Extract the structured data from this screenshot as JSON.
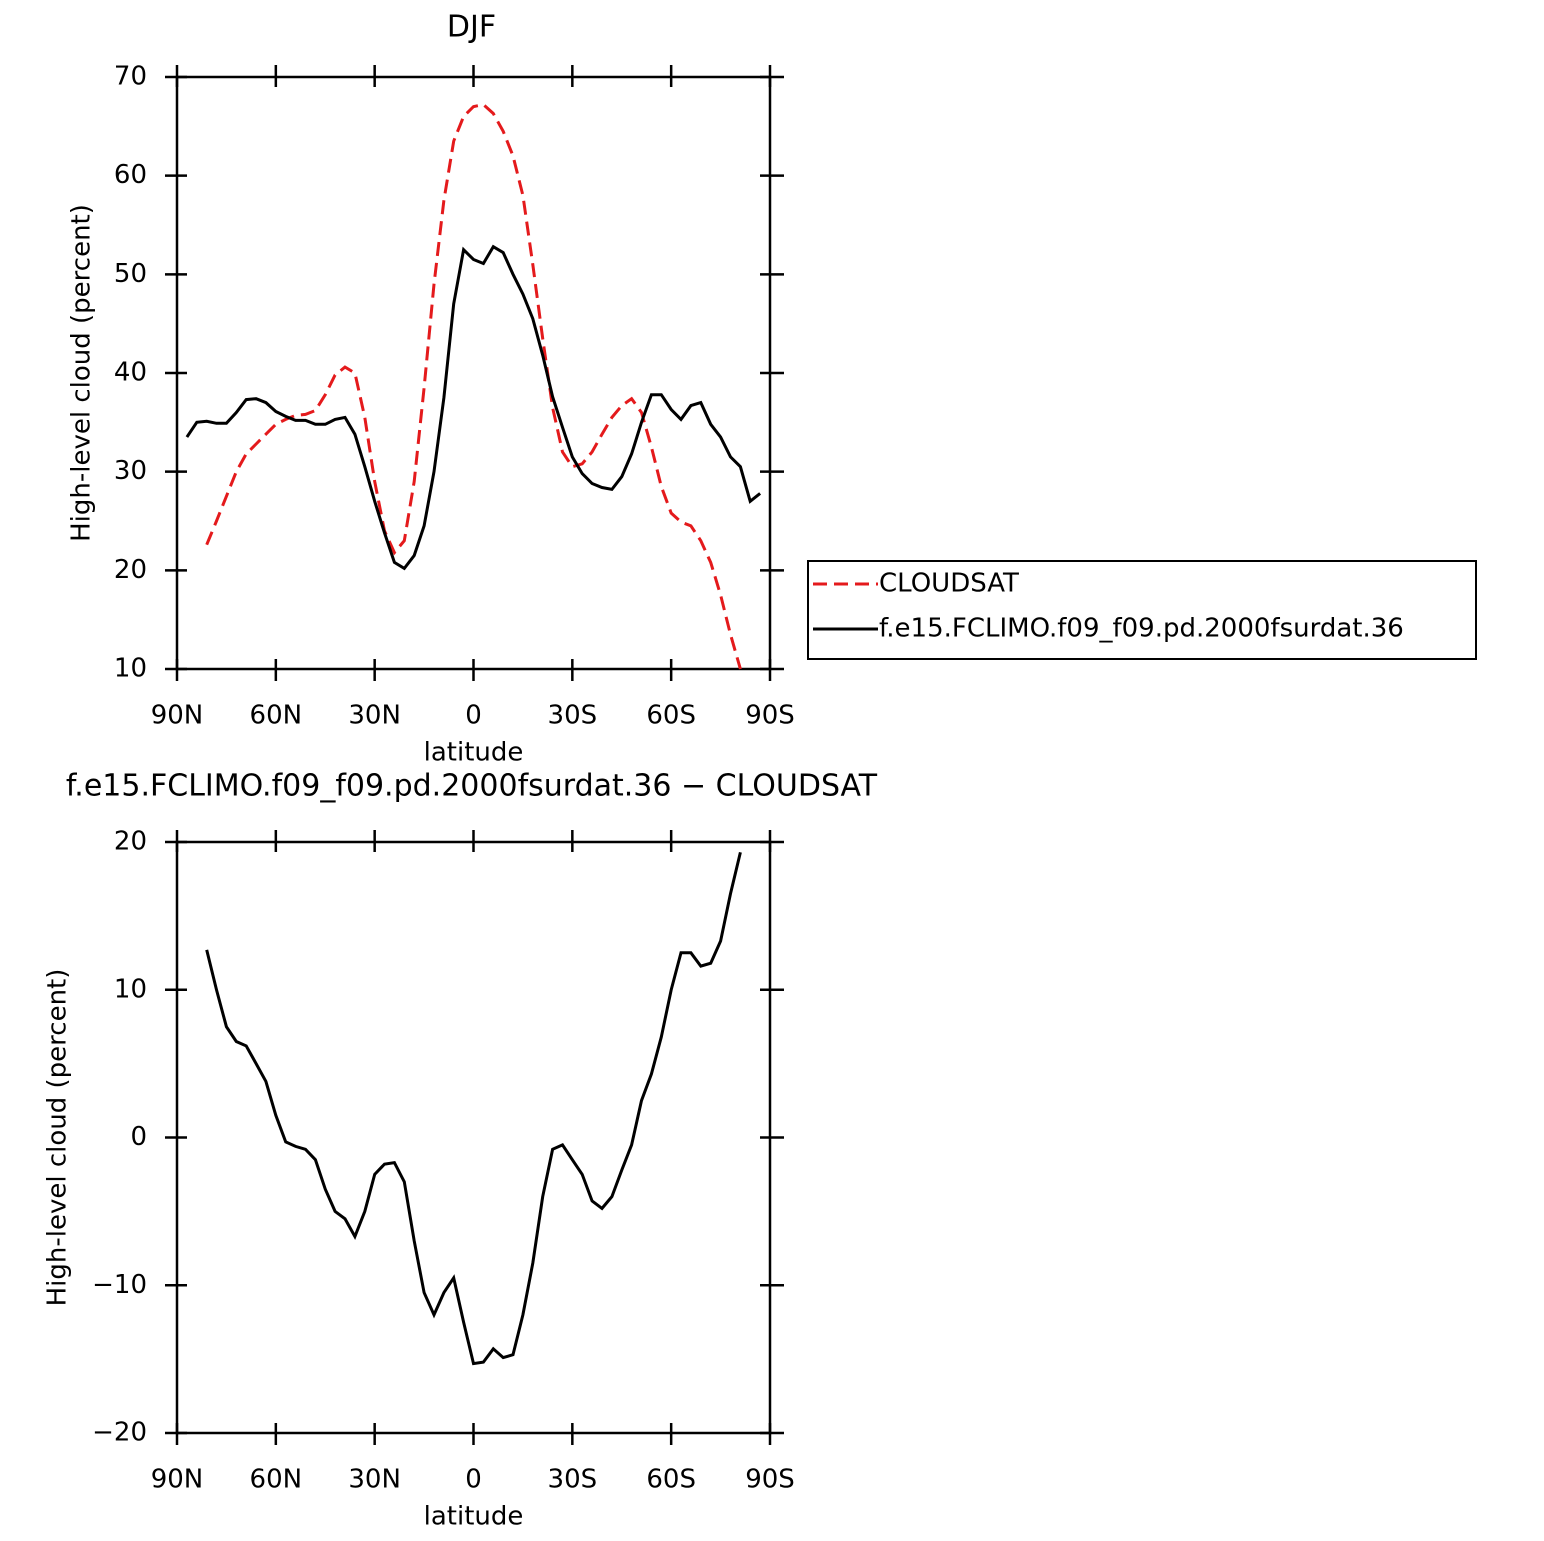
{
  "chart_data": [
    {
      "type": "line",
      "title": "DJF",
      "xlabel": "latitude",
      "ylabel": "High-level cloud (percent)",
      "x": [
        87,
        84,
        81,
        78,
        75,
        72,
        69,
        66,
        63,
        60,
        57,
        54,
        51,
        48,
        45,
        42,
        39,
        36,
        33,
        30,
        27,
        24,
        21,
        18,
        15,
        12,
        9,
        6,
        3,
        0,
        -3,
        -6,
        -9,
        -12,
        -15,
        -18,
        -21,
        -24,
        -27,
        -30,
        -33,
        -36,
        -39,
        -42,
        -45,
        -48,
        -51,
        -54,
        -57,
        -60,
        -63,
        -66,
        -69,
        -72,
        -75,
        -78,
        -81,
        -84,
        -87
      ],
      "series": [
        {
          "name": "CLOUDSAT",
          "color": "#e41a1c",
          "dash": "dashed",
          "values": [
            null,
            null,
            22.6,
            25,
            27.5,
            30,
            31.8,
            32.8,
            33.8,
            34.8,
            35.3,
            35.7,
            35.8,
            36.2,
            37.8,
            39.8,
            40.6,
            40,
            35.5,
            29,
            24,
            21.8,
            23,
            29,
            38.5,
            49,
            57.5,
            63.5,
            66,
            67,
            67.2,
            66.3,
            64.5,
            62,
            58,
            51,
            43.5,
            36.5,
            32,
            30.5,
            30.8,
            32,
            33.8,
            35.5,
            36.7,
            37.4,
            36,
            32.5,
            28.5,
            25.8,
            24.9,
            24.5,
            23,
            20.8,
            17.5,
            13.5,
            10,
            null,
            null
          ]
        },
        {
          "name": "f.e15.FCLIMO.f09_f09.pd.2000fsurdat.36",
          "color": "#000000",
          "dash": "solid",
          "values": [
            33.5,
            35,
            35.1,
            34.9,
            34.9,
            36,
            37.3,
            37.4,
            37,
            36.1,
            35.6,
            35.2,
            35.2,
            34.8,
            34.8,
            35.3,
            35.5,
            33.8,
            30.5,
            27,
            23.8,
            20.8,
            20.2,
            21.5,
            24.5,
            30,
            37.5,
            47,
            52.5,
            51.5,
            51.1,
            52.8,
            52.2,
            50,
            48,
            45.5,
            41.8,
            37.6,
            34.5,
            31.5,
            29.8,
            28.8,
            28.4,
            28.2,
            29.5,
            31.8,
            35,
            37.8,
            37.8,
            36.3,
            35.3,
            36.7,
            37,
            34.8,
            33.5,
            31.5,
            30.5,
            27,
            27.8
          ]
        }
      ],
      "xlim": [
        90,
        -90
      ],
      "xticks": [
        {
          "value": 90,
          "label": "90N"
        },
        {
          "value": 60,
          "label": "60N"
        },
        {
          "value": 30,
          "label": "30N"
        },
        0,
        {
          "value": -30,
          "label": "30S"
        },
        {
          "value": -60,
          "label": "60S"
        },
        {
          "value": -90,
          "label": "90S"
        }
      ],
      "ylim": [
        10,
        70
      ],
      "yticks": [
        10,
        20,
        30,
        40,
        50,
        60,
        70
      ],
      "legend": "right"
    },
    {
      "type": "line",
      "title": "f.e15.FCLIMO.f09_f09.pd.2000fsurdat.36 − CLOUDSAT",
      "xlabel": "latitude",
      "ylabel": "High-level cloud (percent)",
      "x": [
        87,
        84,
        81,
        78,
        75,
        72,
        69,
        66,
        63,
        60,
        57,
        54,
        51,
        48,
        45,
        42,
        39,
        36,
        33,
        30,
        27,
        24,
        21,
        18,
        15,
        12,
        9,
        6,
        3,
        0,
        -3,
        -6,
        -9,
        -12,
        -15,
        -18,
        -21,
        -24,
        -27,
        -30,
        -33,
        -36,
        -39,
        -42,
        -45,
        -48,
        -51,
        -54,
        -57,
        -60,
        -63,
        -66,
        -69,
        -72,
        -75,
        -78,
        -81,
        -84,
        -87
      ],
      "series": [
        {
          "color": "#000000",
          "dash": "solid",
          "values": [
            null,
            null,
            12.7,
            10,
            7.5,
            6.5,
            6.2,
            5,
            3.8,
            1.5,
            -0.3,
            -0.6,
            -0.8,
            -1.5,
            -3.5,
            -5,
            -5.5,
            -6.7,
            -5,
            -2.5,
            -1.8,
            -1.7,
            -3,
            -7,
            -10.5,
            -12,
            -10.5,
            -9.5,
            -12.5,
            -15.3,
            -15.2,
            -14.3,
            -14.9,
            -14.7,
            -12,
            -8.5,
            -4,
            -0.8,
            -0.5,
            -1.5,
            -2.5,
            -4.3,
            -4.8,
            -4,
            -2.2,
            -0.5,
            2.5,
            4.3,
            6.8,
            10,
            12.5,
            12.5,
            11.6,
            11.8,
            13.3,
            16.5,
            19.3,
            null,
            null
          ]
        }
      ],
      "xlim": [
        90,
        -90
      ],
      "xticks": [
        {
          "value": 90,
          "label": "90N"
        },
        {
          "value": 60,
          "label": "60N"
        },
        {
          "value": 30,
          "label": "30N"
        },
        0,
        {
          "value": -30,
          "label": "30S"
        },
        {
          "value": -60,
          "label": "60S"
        },
        {
          "value": -90,
          "label": "90S"
        }
      ],
      "ylim": [
        -20,
        20
      ],
      "yticks": [
        {
          "value": -20,
          "label": "−20"
        },
        {
          "value": -10,
          "label": "−10"
        },
        0,
        10,
        20
      ]
    }
  ]
}
